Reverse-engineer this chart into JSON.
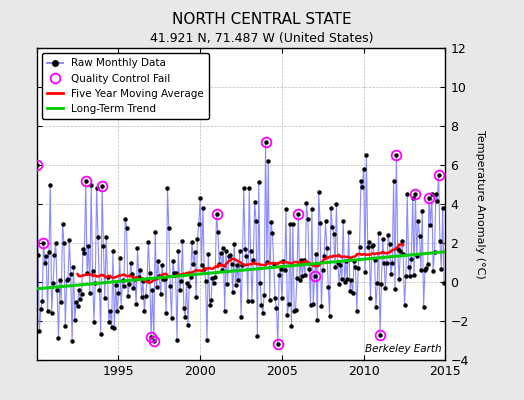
{
  "title": "NORTH CENTRAL STATE",
  "subtitle": "41.921 N, 71.487 W (United States)",
  "ylabel": "Temperature Anomaly (°C)",
  "watermark": "Berkeley Earth",
  "ylim": [
    -4,
    12
  ],
  "yticks": [
    -4,
    -2,
    0,
    2,
    4,
    6,
    8,
    10,
    12
  ],
  "xlim": [
    1990,
    2015
  ],
  "xticks": [
    1995,
    2000,
    2005,
    2010,
    2015
  ],
  "background_color": "#e8e8e8",
  "plot_bg_color": "#ffffff",
  "raw_line_color": "#7777ff",
  "raw_marker_color": "#000000",
  "qc_color": "#ff00ff",
  "moving_avg_color": "#ff0000",
  "trend_color": "#00cc00",
  "legend_items": [
    "Raw Monthly Data",
    "Quality Control Fail",
    "Five Year Moving Average",
    "Long-Term Trend"
  ],
  "trend_x": [
    1990,
    2015
  ],
  "trend_y": [
    -0.35,
    1.55
  ],
  "seed": 137
}
